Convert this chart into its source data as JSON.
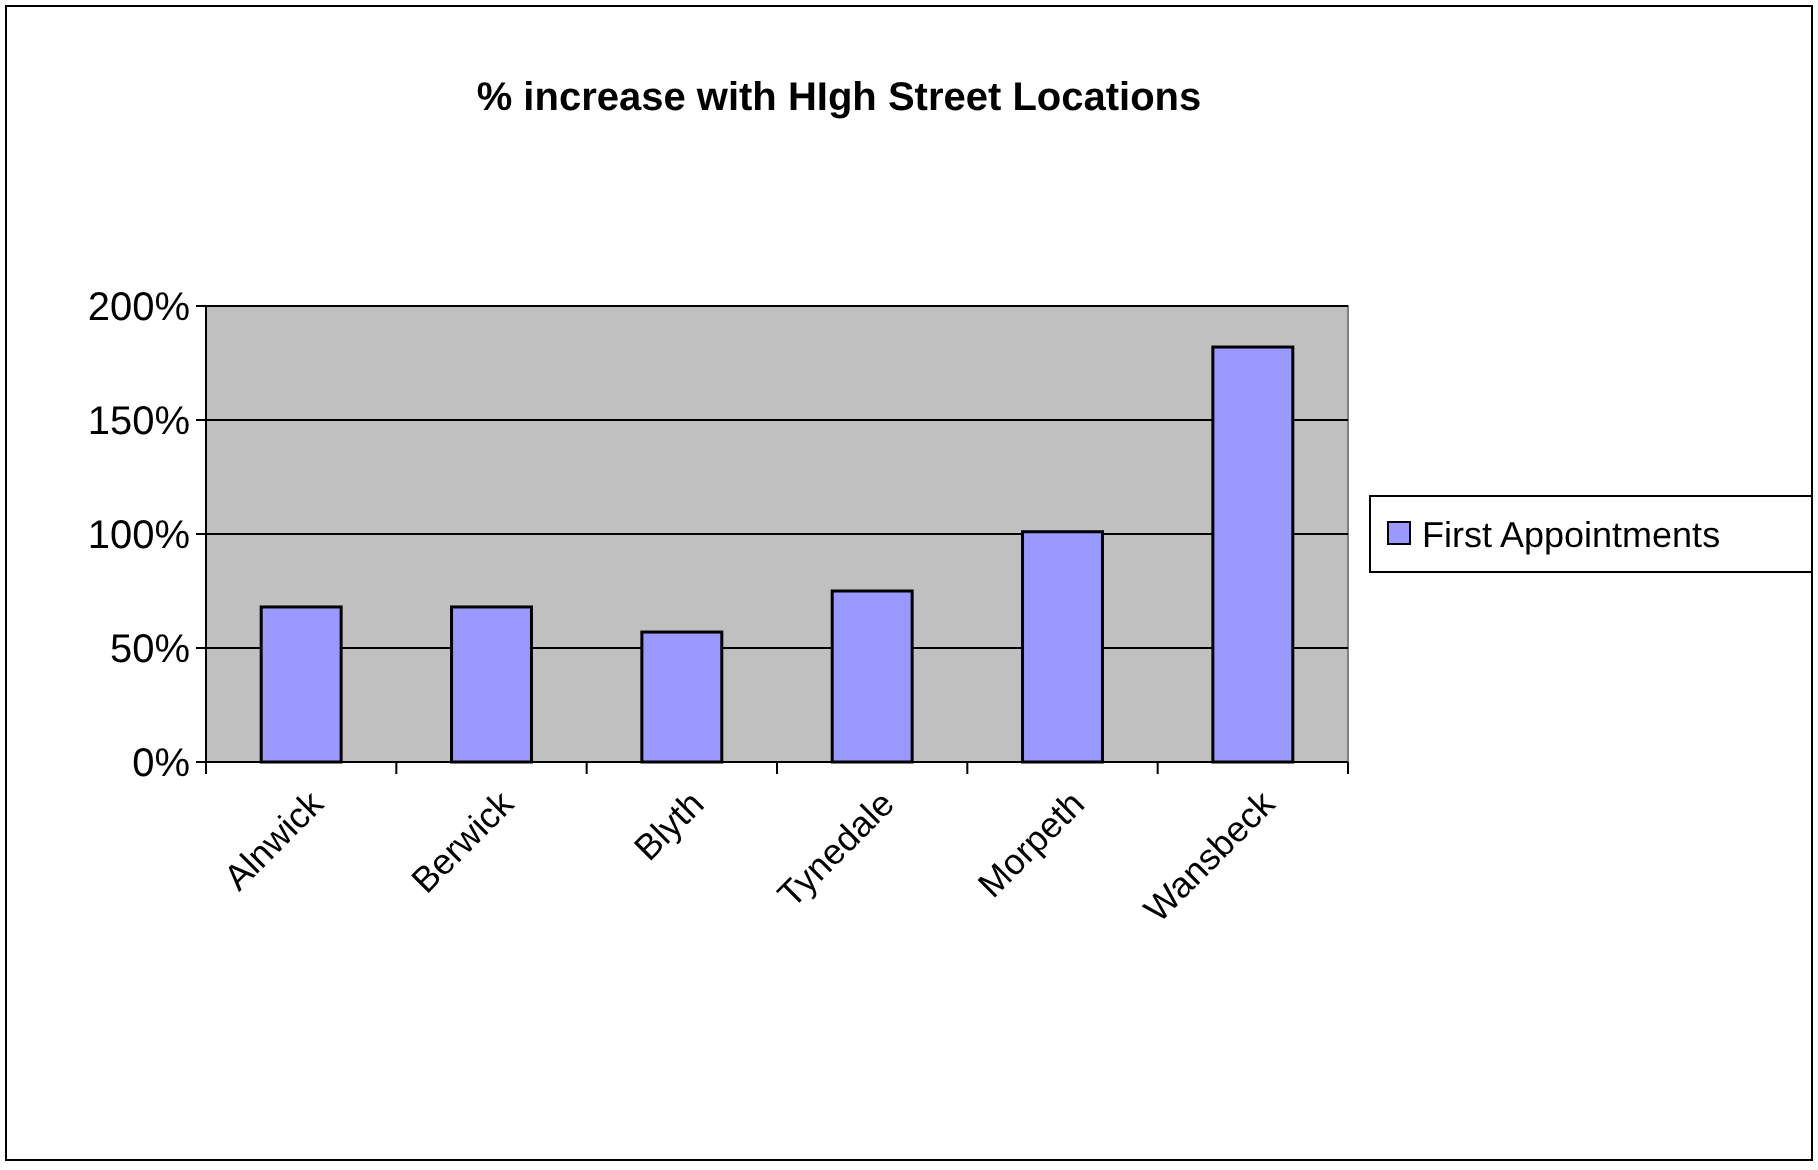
{
  "chart_data": {
    "type": "bar",
    "title": "% increase with HIgh Street Locations",
    "categories": [
      "Alnwick",
      "Berwick",
      "Blyth",
      "Tynedale",
      "Morpeth",
      "Wansbeck"
    ],
    "series": [
      {
        "name": "First Appointments",
        "color": "#9999ff",
        "values": [
          68,
          68,
          57,
          75,
          101,
          182
        ]
      }
    ],
    "ylim": [
      0,
      200
    ],
    "yticks": [
      {
        "value": 0,
        "label": "0%"
      },
      {
        "value": 50,
        "label": "50%"
      },
      {
        "value": 100,
        "label": "100%"
      },
      {
        "value": 150,
        "label": "150%"
      },
      {
        "value": 200,
        "label": "200%"
      }
    ],
    "grid": "y",
    "legend": "right"
  }
}
